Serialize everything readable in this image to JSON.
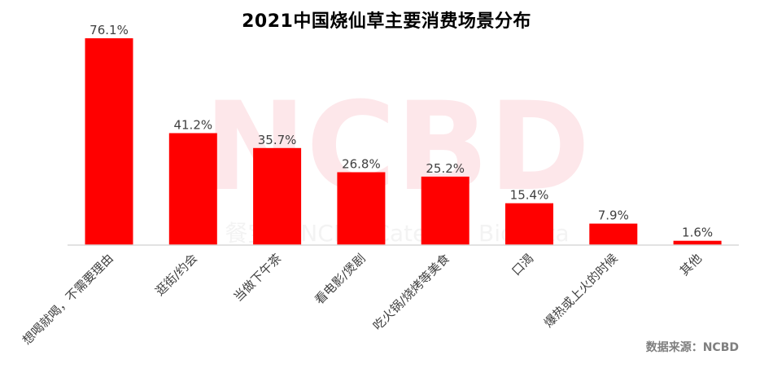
{
  "chart_data": {
    "type": "bar",
    "title": "2021中国烧仙草主要消费场景分布",
    "categories": [
      "想喝就喝，不需要理由",
      "逛街/约会",
      "当做下午茶",
      "看电影/煲剧",
      "吃火锅/烧烤等美食",
      "口渴",
      "爆热或上火的时候",
      "其他"
    ],
    "values": [
      76.1,
      41.2,
      35.7,
      26.8,
      25.2,
      15.4,
      7.9,
      1.6
    ],
    "value_labels": [
      "76.1%",
      "41.2%",
      "35.7%",
      "26.8%",
      "25.2%",
      "15.4%",
      "7.9%",
      "1.6%"
    ],
    "xlabel": "",
    "ylabel": "",
    "ylim": [
      0,
      76.1
    ],
    "grid": false,
    "bar_color": "#ff0000"
  },
  "source_note": "数据来源：NCBD",
  "watermark": {
    "main": "NCBD",
    "sub": "餐宝典 NCBD Catering BigData"
  }
}
